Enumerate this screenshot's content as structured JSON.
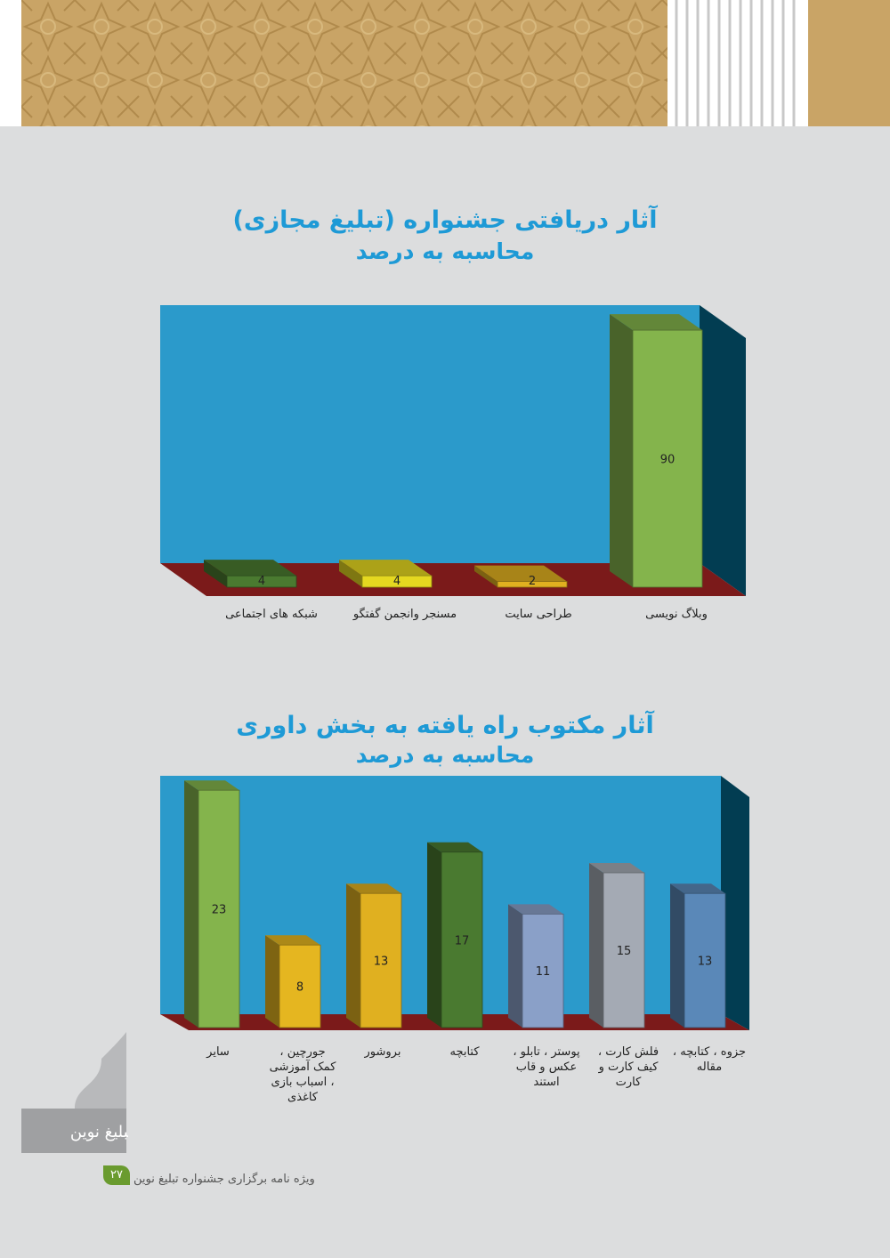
{
  "charts": [
    {
      "title_line1": "آثار دریافتی جشنواره (تبلیغ مجازی)",
      "title_line2": "محاسبه به درصد"
    },
    {
      "title_line1": "آثار مکتوب راه یافته به بخش داوری",
      "title_line2": "محاسبه به درصد"
    }
  ],
  "chart_data": [
    {
      "type": "bar",
      "categories": [
        "شبکه های اجتماعی",
        "مسنجر وانجمن گفتگو",
        "طراحی سایت",
        "وبلاگ نویسی"
      ],
      "values": [
        4,
        4,
        2,
        90
      ],
      "colors": [
        "#4a7a30",
        "#e5d820",
        "#e0b020",
        "#84b44c"
      ],
      "title": "آثار دریافتی جشنواره (تبلیغ مجازی) محاسبه به درصد",
      "ylim": [
        0,
        100
      ],
      "grid": false,
      "legend": "none"
    },
    {
      "type": "bar",
      "categories": [
        "سایر",
        "جورچین ، کمک آموزشی ، اسباب بازی کاغذی",
        "بروشور",
        "کتابچه",
        "پوستر ، تابلو ، عکس و قاب استند",
        "فلش کارت ، کیف کارت و کارت",
        "جزوه ، کتابچه ، مقاله"
      ],
      "values": [
        23,
        8,
        13,
        17,
        11,
        15,
        13
      ],
      "colors": [
        "#84b44c",
        "#e5b620",
        "#e0b020",
        "#4a7a30",
        "#8aa0c8",
        "#a4aab4",
        "#5a88b8"
      ],
      "title": "آثار مکتوب راه یافته به بخش داوری محاسبه به درصد",
      "ylim": [
        0,
        25
      ],
      "grid": false,
      "legend": "none"
    }
  ],
  "footer": {
    "text": "ویژه نامه برگزاری جشنواره تبلیغ نوین",
    "page_number": "۲۷"
  },
  "emblem_text": "تبلیغ نوین"
}
